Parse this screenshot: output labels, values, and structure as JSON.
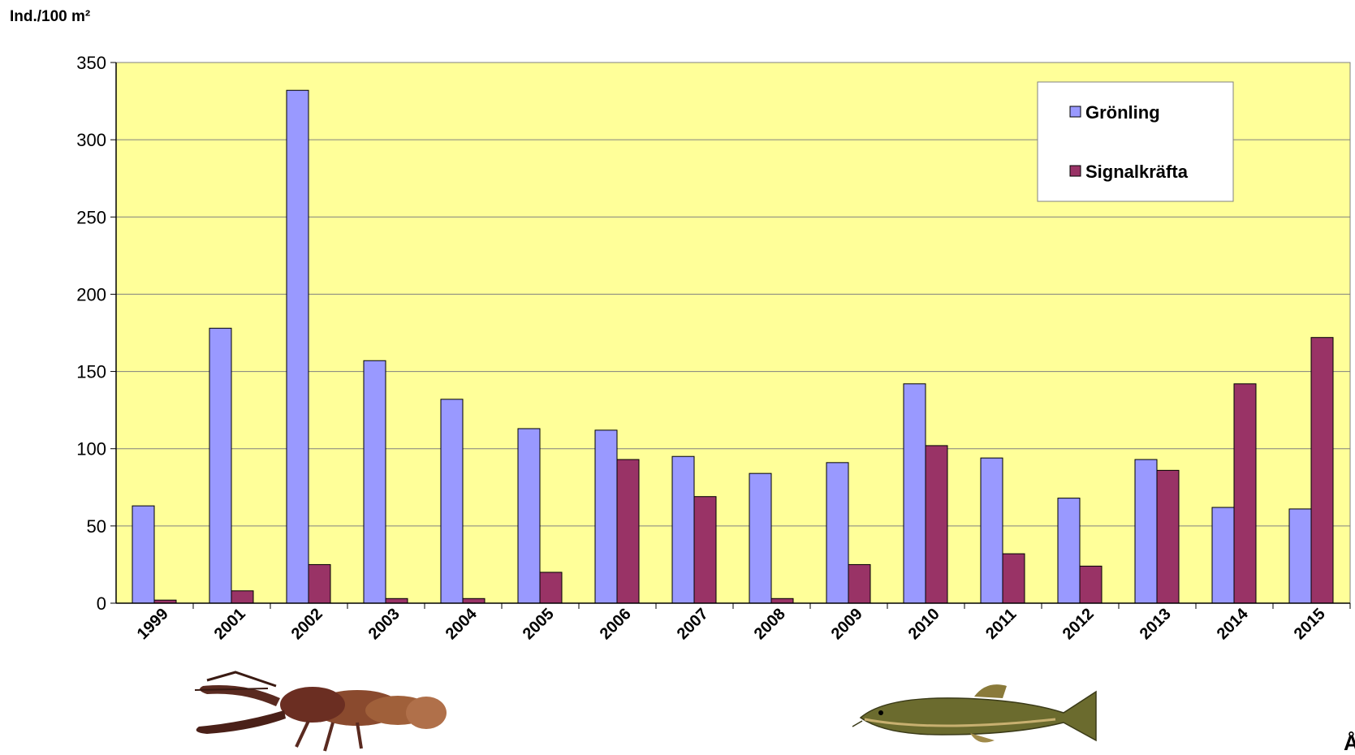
{
  "chart_data": {
    "type": "bar",
    "ylabel": "Ind./100 m²",
    "xlabel_partial": "Å",
    "categories": [
      "1999",
      "2001",
      "2002",
      "2003",
      "2004",
      "2005",
      "2006",
      "2007",
      "2008",
      "2009",
      "2010",
      "2011",
      "2012",
      "2013",
      "2014",
      "2015"
    ],
    "ylim": [
      0,
      350
    ],
    "yticks": [
      "0",
      "50",
      "100",
      "150",
      "200",
      "250",
      "300",
      "350"
    ],
    "grid": true,
    "legend_position": "top-right",
    "series": [
      {
        "name": "Grönling",
        "color": "#9999ff",
        "values": [
          63,
          178,
          332,
          157,
          132,
          113,
          112,
          95,
          84,
          91,
          142,
          94,
          68,
          93,
          62,
          61
        ]
      },
      {
        "name": "Signalkräfta",
        "color": "#993366",
        "values": [
          2,
          8,
          25,
          3,
          3,
          20,
          93,
          69,
          3,
          25,
          102,
          32,
          24,
          86,
          142,
          172
        ]
      }
    ],
    "plot_background": "#ffff99"
  },
  "illustrations": {
    "left": "crayfish-illustration",
    "right": "fish-illustration"
  }
}
